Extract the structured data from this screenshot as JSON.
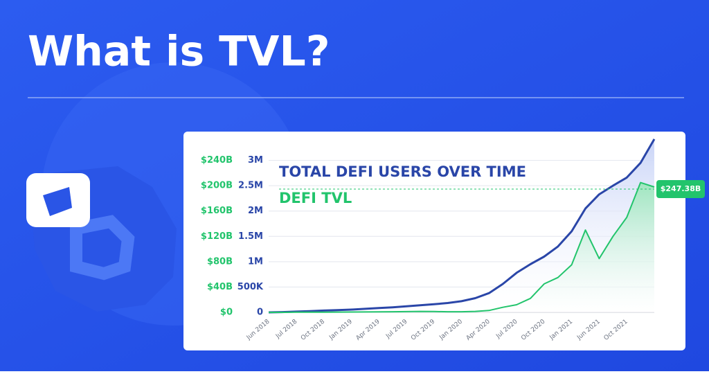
{
  "chart_data": {
    "type": "line",
    "title": "What is TVL?",
    "categories": [
      "Jun 2018",
      null,
      "Jul 2018",
      null,
      "Oct 2018",
      null,
      "Jan 2019",
      null,
      "Apr 2019",
      null,
      "Jul 2019",
      null,
      "Oct 2019",
      null,
      "Jan 2020",
      null,
      "Apr 2020",
      null,
      "Jul 2020",
      null,
      "Oct 2020",
      null,
      "Jan 2021",
      null,
      "Jun 2021",
      null,
      "Oct 2021",
      null,
      null
    ],
    "series": [
      {
        "name": "TOTAL DEFI USERS OVER TIME",
        "color": "#2a46a8",
        "axis": "y2",
        "values": [
          0,
          5000,
          15000,
          25000,
          35000,
          45000,
          55000,
          70000,
          85000,
          100000,
          120000,
          140000,
          160000,
          185000,
          220000,
          280000,
          380000,
          560000,
          780000,
          950000,
          1100000,
          1300000,
          1600000,
          2050000,
          2330000,
          2500000,
          2660000,
          2950000,
          3420000
        ]
      },
      {
        "name": "DEFI TVL",
        "color": "#22c46c",
        "values": [
          0,
          0,
          0.3,
          0.3,
          0.3,
          0.4,
          0.5,
          0.7,
          0.8,
          1,
          1.2,
          1.5,
          1.3,
          1,
          1,
          1.5,
          3,
          8,
          12,
          22,
          45,
          55,
          75,
          130,
          85,
          120,
          150,
          205,
          198
        ]
      }
    ],
    "annotation": "$247.38B",
    "ylim": [
      0,
      280
    ],
    "yticks": [
      {
        "value": 0,
        "label": "$0"
      },
      {
        "value": 40,
        "label": "$40B"
      },
      {
        "value": 80,
        "label": "$80B"
      },
      {
        "value": 120,
        "label": "$120B"
      },
      {
        "value": 160,
        "label": "$160B"
      },
      {
        "value": 200,
        "label": "$200B"
      },
      {
        "value": 240,
        "label": "$240B"
      }
    ],
    "y2lim": [
      0,
      3500000
    ],
    "y2ticks": [
      0,
      {
        "value": 500000,
        "label": "500K"
      },
      {
        "value": 1000000,
        "label": "1M"
      },
      {
        "value": 1500000,
        "label": "1.5M"
      },
      {
        "value": 2000000,
        "label": "2M"
      },
      {
        "value": 2500000,
        "label": "2.5M"
      },
      {
        "value": 3000000,
        "label": "3M"
      }
    ],
    "grid": true
  }
}
